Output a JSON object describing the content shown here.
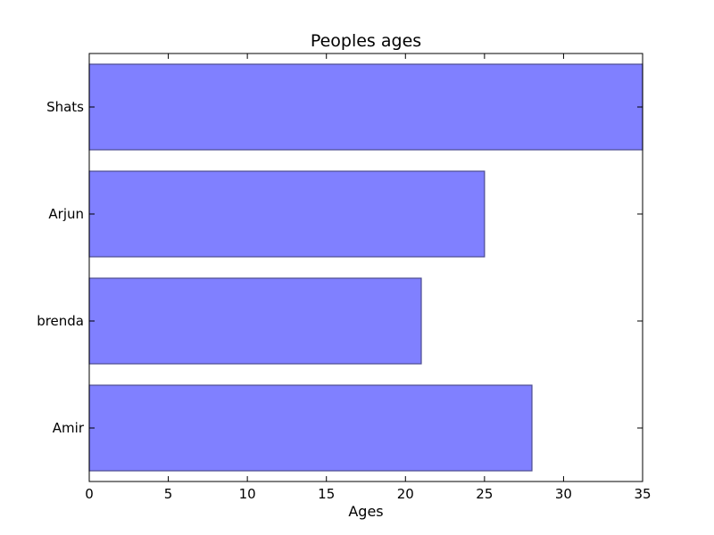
{
  "chart_data": {
    "type": "bar",
    "orientation": "horizontal",
    "title": "Peoples ages",
    "xlabel": "Ages",
    "ylabel": "",
    "categories": [
      "Amir",
      "brenda",
      "Arjun",
      "Shats"
    ],
    "values": [
      28,
      21,
      25,
      35
    ],
    "xlim": [
      0,
      35
    ],
    "xticks": [
      0,
      5,
      10,
      15,
      20,
      25,
      30,
      35
    ],
    "grid": false,
    "legend": false,
    "colors": {
      "bar_fill": "#8080ff",
      "bar_edge": "#4b4b8f",
      "axis": "#000000"
    }
  }
}
